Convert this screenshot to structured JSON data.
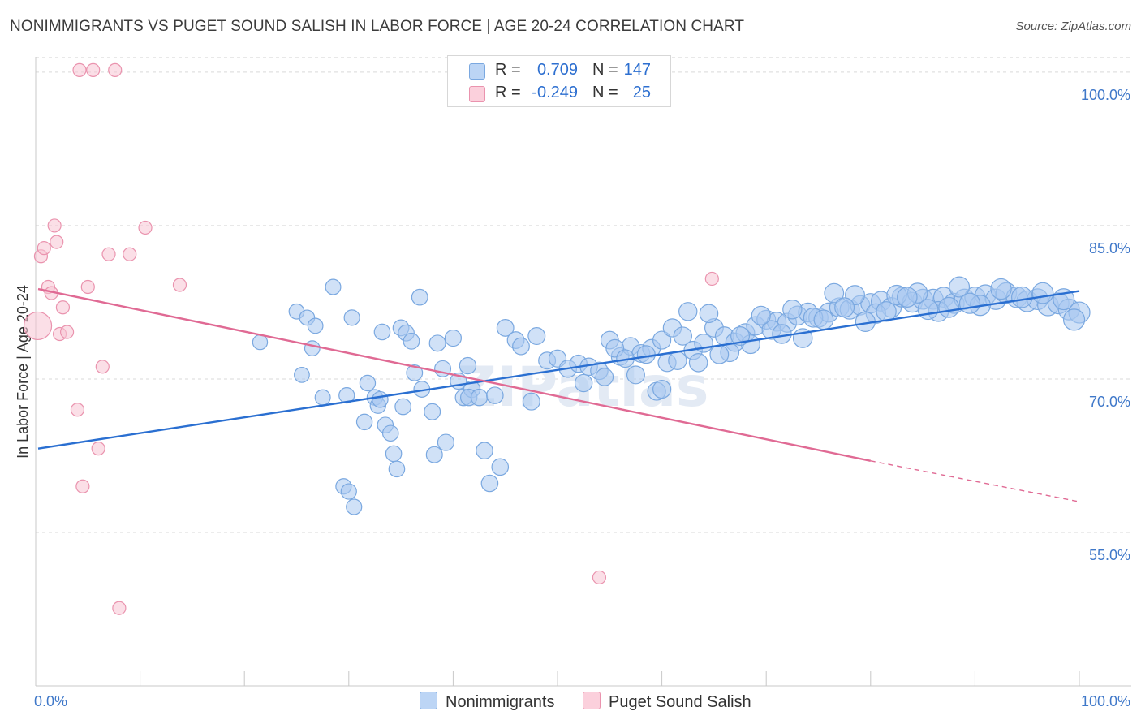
{
  "title": "NONIMMIGRANTS VS PUGET SOUND SALISH IN LABOR FORCE | AGE 20-24 CORRELATION CHART",
  "source": "Source: ZipAtlas.com",
  "watermark": "ZIPatlas",
  "legend_top": {
    "rows": [
      {
        "r_label": "R =",
        "r_value": "0.709",
        "n_label": "N =",
        "n_value": "147",
        "color": "#a9c8f0"
      },
      {
        "r_label": "R =",
        "r_value": "-0.249",
        "n_label": "N =",
        "n_value": "25",
        "color": "#f5b5c8"
      }
    ]
  },
  "legend_bottom": [
    {
      "label": "Nonimmigrants",
      "color": "#a9c8f0"
    },
    {
      "label": "Puget Sound Salish",
      "color": "#f5b5c8"
    }
  ],
  "colors": {
    "blue_fill": "#a9c8f0",
    "blue_stroke": "#7aa8e0",
    "blue_line": "#2a6fd1",
    "pink_fill": "#f7c4d3",
    "pink_stroke": "#ea93ae",
    "pink_line": "#e06a94",
    "axis_label": "#3f78c9",
    "grid": "#d9d9d9"
  },
  "chart_data": {
    "type": "scatter",
    "xlabel": "",
    "ylabel": "In Labor Force | Age 20-24",
    "xlim": [
      0,
      100
    ],
    "ylim": [
      40,
      101.5
    ],
    "x_tick_labels": [
      "0.0%",
      "100.0%"
    ],
    "y_ticks": [
      55,
      70,
      85,
      100
    ],
    "y_tick_labels": [
      "55.0%",
      "70.0%",
      "85.0%",
      "100.0%"
    ],
    "grid": true,
    "series": [
      {
        "name": "Nonimmigrants",
        "color": "#a9c8f0",
        "trend": {
          "x0": 0,
          "y0": 63.2,
          "x1": 100,
          "y1": 78.6
        },
        "points": [
          [
            21.5,
            73.6
          ],
          [
            25.0,
            76.6
          ],
          [
            25.5,
            70.4
          ],
          [
            26.0,
            76.0
          ],
          [
            26.5,
            73.0
          ],
          [
            26.8,
            75.2
          ],
          [
            27.5,
            68.2
          ],
          [
            28.5,
            79.0
          ],
          [
            29.5,
            59.5
          ],
          [
            29.8,
            68.4
          ],
          [
            30.0,
            59.0
          ],
          [
            30.5,
            57.5
          ],
          [
            30.3,
            76.0
          ],
          [
            31.5,
            65.8
          ],
          [
            31.8,
            69.6
          ],
          [
            32.5,
            68.2
          ],
          [
            32.8,
            67.4
          ],
          [
            33.0,
            68.0
          ],
          [
            33.2,
            74.6
          ],
          [
            33.5,
            65.5
          ],
          [
            34.0,
            64.7
          ],
          [
            34.3,
            62.7
          ],
          [
            34.6,
            61.2
          ],
          [
            35.0,
            75.0
          ],
          [
            35.2,
            67.3
          ],
          [
            35.5,
            74.5
          ],
          [
            36.0,
            73.7
          ],
          [
            36.3,
            70.6
          ],
          [
            36.8,
            78.0
          ],
          [
            37.0,
            69.0
          ],
          [
            38.0,
            66.8
          ],
          [
            38.5,
            73.5
          ],
          [
            38.2,
            62.6
          ],
          [
            39.0,
            71.0
          ],
          [
            39.3,
            63.8
          ],
          [
            40.0,
            74.0
          ],
          [
            40.5,
            69.8
          ],
          [
            41.0,
            68.2
          ],
          [
            41.4,
            71.3
          ],
          [
            41.8,
            69.0
          ],
          [
            41.5,
            68.2
          ],
          [
            42.5,
            68.2
          ],
          [
            43.0,
            63.0
          ],
          [
            44.0,
            68.4
          ],
          [
            47.5,
            67.8
          ],
          [
            43.5,
            59.8
          ],
          [
            44.5,
            61.4
          ],
          [
            45.0,
            75.0
          ],
          [
            46.0,
            73.8
          ],
          [
            46.5,
            73.2
          ],
          [
            48.0,
            74.2
          ],
          [
            49.0,
            71.8
          ],
          [
            50.0,
            72.0
          ],
          [
            51.0,
            71.0
          ],
          [
            52.0,
            71.5
          ],
          [
            53.0,
            71.2
          ],
          [
            54.0,
            70.8
          ],
          [
            55.0,
            73.8
          ],
          [
            56.0,
            72.2
          ],
          [
            57.0,
            73.2
          ],
          [
            58.0,
            72.5
          ],
          [
            59.0,
            73.0
          ],
          [
            60.0,
            73.8
          ],
          [
            61.0,
            75.0
          ],
          [
            62.0,
            74.2
          ],
          [
            63.0,
            72.8
          ],
          [
            64.0,
            73.5
          ],
          [
            65.0,
            75.0
          ],
          [
            66.0,
            74.2
          ],
          [
            67.0,
            73.6
          ],
          [
            68.0,
            74.5
          ],
          [
            69.0,
            75.2
          ],
          [
            70.0,
            75.8
          ],
          [
            71.0,
            75.6
          ],
          [
            72.0,
            75.5
          ],
          [
            73.0,
            76.2
          ],
          [
            74.0,
            76.5
          ],
          [
            75.0,
            76.0
          ],
          [
            76.0,
            76.5
          ],
          [
            77.0,
            77.0
          ],
          [
            78.0,
            76.8
          ],
          [
            79.0,
            77.2
          ],
          [
            80.0,
            77.4
          ],
          [
            81.0,
            77.6
          ],
          [
            82.0,
            77.0
          ],
          [
            83.0,
            78.0
          ],
          [
            84.0,
            77.5
          ],
          [
            85.0,
            77.8
          ],
          [
            86.0,
            77.8
          ],
          [
            87.0,
            78.0
          ],
          [
            88.0,
            77.4
          ],
          [
            89.0,
            77.8
          ],
          [
            90.0,
            78.0
          ],
          [
            91.0,
            78.2
          ],
          [
            92.0,
            77.8
          ],
          [
            93.0,
            78.4
          ],
          [
            94.0,
            78.0
          ],
          [
            95.0,
            77.6
          ],
          [
            96.0,
            77.8
          ],
          [
            97.0,
            77.2
          ],
          [
            98.0,
            77.4
          ],
          [
            99.0,
            76.8
          ],
          [
            100.0,
            76.5
          ],
          [
            55.5,
            73.0
          ],
          [
            57.5,
            70.4
          ],
          [
            59.5,
            68.8
          ],
          [
            60.5,
            71.6
          ],
          [
            62.5,
            76.6
          ],
          [
            64.5,
            76.4
          ],
          [
            66.5,
            72.6
          ],
          [
            68.5,
            73.4
          ],
          [
            70.5,
            74.8
          ],
          [
            72.5,
            76.8
          ],
          [
            74.5,
            76.0
          ],
          [
            76.5,
            78.4
          ],
          [
            78.5,
            78.2
          ],
          [
            80.5,
            76.4
          ],
          [
            82.5,
            78.2
          ],
          [
            84.5,
            78.4
          ],
          [
            86.5,
            76.6
          ],
          [
            88.5,
            79.0
          ],
          [
            90.5,
            77.2
          ],
          [
            92.5,
            78.8
          ],
          [
            94.5,
            78.0
          ],
          [
            96.5,
            78.4
          ],
          [
            98.5,
            77.8
          ],
          [
            99.5,
            75.8
          ],
          [
            52.5,
            69.6
          ],
          [
            54.5,
            70.2
          ],
          [
            56.5,
            72.0
          ],
          [
            58.5,
            72.4
          ],
          [
            60.0,
            69.0
          ],
          [
            61.5,
            71.8
          ],
          [
            63.5,
            71.6
          ],
          [
            65.5,
            72.4
          ],
          [
            67.5,
            74.2
          ],
          [
            69.5,
            76.2
          ],
          [
            71.5,
            74.4
          ],
          [
            73.5,
            74.0
          ],
          [
            75.5,
            75.8
          ],
          [
            77.5,
            77.0
          ],
          [
            79.5,
            75.6
          ],
          [
            81.5,
            76.6
          ],
          [
            83.5,
            78.0
          ],
          [
            85.5,
            76.8
          ],
          [
            87.5,
            77.0
          ],
          [
            89.5,
            77.4
          ]
        ],
        "point_sizes": "larger bubbles toward the right side"
      },
      {
        "name": "Puget Sound Salish",
        "color": "#f5b5c8",
        "trend": {
          "x0": 0,
          "y0": 78.8,
          "x1": 80,
          "y1": 62.0,
          "dashed_to_x": 100,
          "dashed_to_y": 58.0
        },
        "points": [
          [
            0.2,
            75.2
          ],
          [
            0.5,
            82.0
          ],
          [
            0.8,
            82.8
          ],
          [
            1.2,
            79.0
          ],
          [
            1.5,
            78.4
          ],
          [
            1.8,
            85.0
          ],
          [
            2.0,
            83.4
          ],
          [
            2.3,
            74.4
          ],
          [
            2.6,
            77.0
          ],
          [
            3.0,
            74.6
          ],
          [
            4.0,
            67.0
          ],
          [
            4.5,
            59.5
          ],
          [
            5.0,
            79.0
          ],
          [
            6.0,
            63.2
          ],
          [
            6.4,
            71.2
          ],
          [
            7.0,
            82.2
          ],
          [
            9.0,
            82.2
          ],
          [
            10.5,
            84.8
          ],
          [
            13.8,
            79.2
          ],
          [
            4.2,
            100.2
          ],
          [
            5.5,
            100.2
          ],
          [
            7.6,
            100.2
          ],
          [
            8.0,
            47.6
          ],
          [
            54.0,
            50.6
          ],
          [
            64.8,
            79.8
          ]
        ]
      }
    ]
  }
}
